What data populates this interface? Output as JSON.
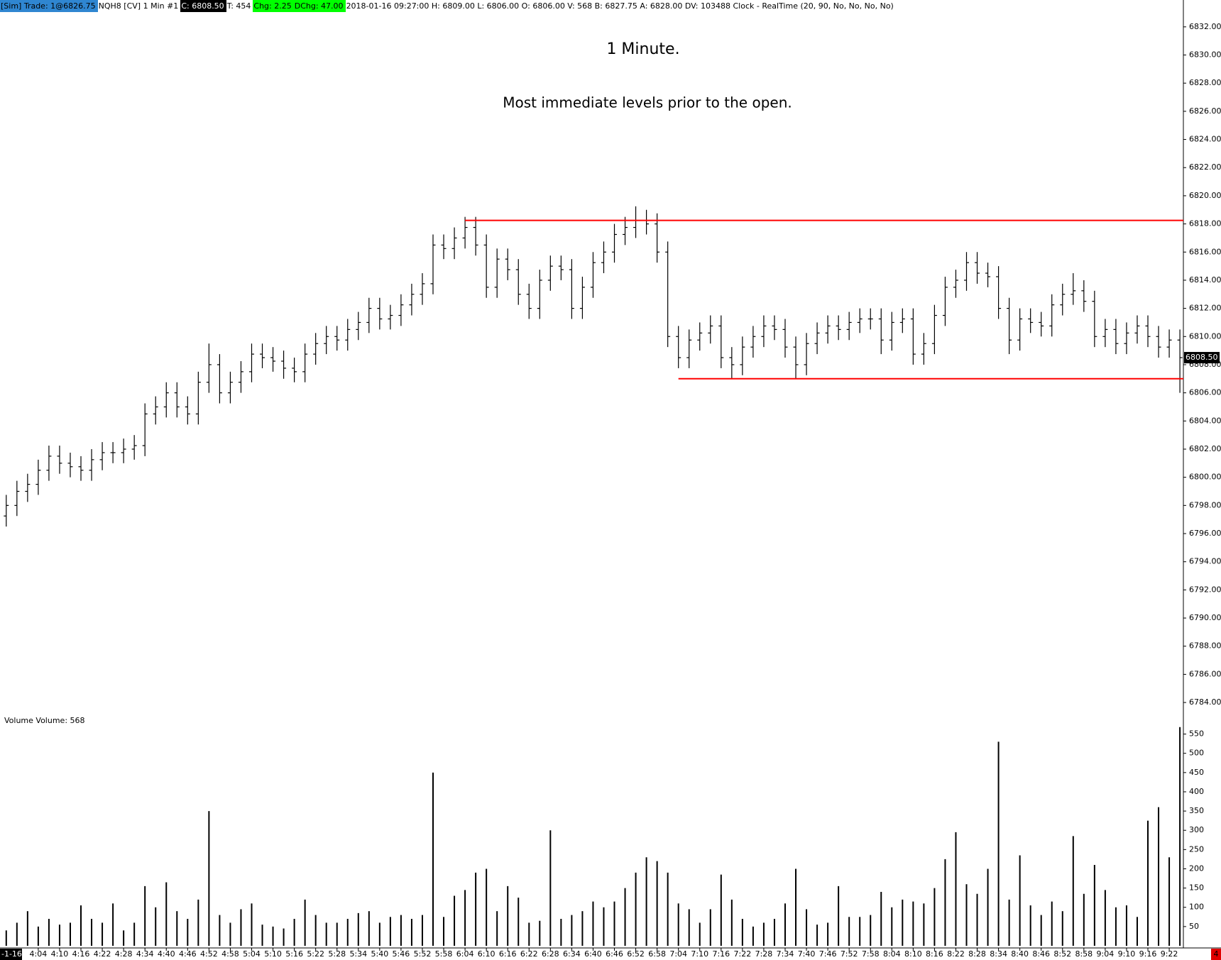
{
  "header": {
    "account": "[Sim]  Trade: 1@6826.75",
    "instrument": "NQH8 [CV]  1 Min  #1",
    "close": "C: 6808.50",
    "ticks": "T: 454",
    "change": "Chg: 2.25",
    "day_change": "DChg: 47.00",
    "details": "2018-01-16 09:27:00 H: 6809.00 L: 6806.00 O: 6806.00 V: 568 B: 6827.75 A: 6828.00 DV: 103488 Clock - RealTime  (20, 90, No, No, No, No)"
  },
  "footer": {
    "date": "-1-16",
    "badge": "4"
  },
  "chart_data": {
    "type": "ohlc",
    "title": "1 Minute.",
    "subtitle": "Most immediate levels prior to the open.",
    "color": "#000000",
    "categories": [
      null,
      null,
      null,
      "4:04",
      null,
      "4:10",
      null,
      "4:16",
      null,
      "4:22",
      null,
      "4:28",
      null,
      "4:34",
      null,
      "4:40",
      null,
      "4:46",
      null,
      "4:52",
      null,
      "4:58",
      null,
      "5:04",
      null,
      "5:10",
      null,
      "5:16",
      null,
      "5:22",
      null,
      "5:28",
      null,
      "5:34",
      null,
      "5:40",
      null,
      "5:46",
      null,
      "5:52",
      null,
      "5:58",
      null,
      "6:04",
      null,
      "6:10",
      null,
      "6:16",
      null,
      "6:22",
      null,
      "6:28",
      null,
      "6:34",
      null,
      "6:40",
      null,
      "6:46",
      null,
      "6:52",
      null,
      "6:58",
      null,
      "7:04",
      null,
      "7:10",
      null,
      "7:16",
      null,
      "7:22",
      null,
      "7:28",
      null,
      "7:34",
      null,
      "7:40",
      null,
      "7:46",
      null,
      "7:52",
      null,
      "7:58",
      null,
      "8:04",
      null,
      "8:10",
      null,
      "8:16",
      null,
      "8:22",
      null,
      "8:28",
      null,
      "8:34",
      null,
      "8:40",
      null,
      "8:46",
      null,
      "8:52",
      null,
      "8:58",
      null,
      "9:04",
      null,
      "9:10",
      null,
      "9:16",
      null,
      "9:22",
      null
    ],
    "open": [
      6797.25,
      6798,
      6799,
      6799.5,
      6800.5,
      6801.5,
      6801,
      6800.75,
      6800.5,
      6801.25,
      6801.75,
      6801.75,
      6802,
      6802.25,
      6804.5,
      6805,
      6806,
      6805,
      6804.5,
      6806.75,
      6808,
      6806,
      6806.75,
      6807.5,
      6808.75,
      6808.5,
      6808.25,
      6807.75,
      6807.5,
      6808.75,
      6809.5,
      6810,
      6809.75,
      6810.5,
      6811,
      6812,
      6811.25,
      6811.5,
      6812.25,
      6813,
      6813.75,
      6816.5,
      6816.25,
      6817,
      6817.75,
      6816.5,
      6813.5,
      6815.5,
      6814.75,
      6813,
      6812,
      6814,
      6815,
      6814.75,
      6812,
      6813.5,
      6815.25,
      6816,
      6817.25,
      6817.75,
      6818.25,
      6818,
      6816,
      6810,
      6808.5,
      6809.75,
      6810.25,
      6810.75,
      6808.5,
      6808,
      6809.25,
      6810,
      6810.75,
      6810.5,
      6809.25,
      6808,
      6809.5,
      6810.25,
      6810.75,
      6810.5,
      6811,
      6811.25,
      6811.25,
      6809.75,
      6811,
      6811.25,
      6808.75,
      6809.5,
      6811.5,
      6813.5,
      6814,
      6815.25,
      6814.5,
      6814.25,
      6812,
      6809.75,
      6811.25,
      6811,
      6810.75,
      6812.25,
      6813,
      6813.25,
      6812.5,
      6810,
      6810.5,
      6809.5,
      6810.25,
      6810.75,
      6810,
      6809.25,
      6809.75
    ],
    "high": [
      6798.75,
      6799.75,
      6800.25,
      6801.25,
      6802.25,
      6802.25,
      6801.75,
      6801.5,
      6802,
      6802.5,
      6802.5,
      6802.75,
      6803,
      6805.25,
      6805.75,
      6806.75,
      6806.75,
      6805.75,
      6807.5,
      6809.5,
      6808.75,
      6807.5,
      6808.25,
      6809.5,
      6809.5,
      6809.25,
      6809,
      6808.5,
      6809.5,
      6810.25,
      6810.75,
      6810.75,
      6811.25,
      6811.75,
      6812.75,
      6812.75,
      6812.25,
      6813,
      6813.75,
      6814.5,
      6817.25,
      6817.25,
      6817.75,
      6818.5,
      6818.5,
      6817.25,
      6816.25,
      6816.25,
      6815.5,
      6813.75,
      6814.75,
      6815.75,
      6815.75,
      6815.5,
      6814.25,
      6816,
      6816.75,
      6818,
      6818.5,
      6819.25,
      6819,
      6818.75,
      6816.75,
      6810.75,
      6810.5,
      6811,
      6811.5,
      6811.5,
      6809.25,
      6810,
      6810.75,
      6811.5,
      6811.5,
      6811.25,
      6810,
      6810.25,
      6811,
      6811.5,
      6811.5,
      6811.75,
      6812,
      6812,
      6812,
      6811.75,
      6812,
      6812,
      6810.25,
      6812.25,
      6814.25,
      6814.75,
      6816,
      6816,
      6815.25,
      6815,
      6812.75,
      6812,
      6812,
      6811.75,
      6813,
      6813.75,
      6814.5,
      6814,
      6813.25,
      6811.25,
      6811.25,
      6811,
      6811.5,
      6811.5,
      6810.75,
      6810.5,
      6810.5
    ],
    "low": [
      6796.5,
      6797.25,
      6798.25,
      6798.75,
      6799.75,
      6800.25,
      6800,
      6799.75,
      6799.75,
      6800.5,
      6801,
      6801,
      6801.25,
      6801.5,
      6803.75,
      6804.25,
      6804.25,
      6803.75,
      6803.75,
      6806,
      6805.25,
      6805.25,
      6806,
      6806.75,
      6807.75,
      6807.5,
      6807,
      6806.75,
      6806.75,
      6808,
      6808.75,
      6809,
      6809,
      6809.75,
      6810.25,
      6810.5,
      6810.5,
      6810.75,
      6811.5,
      6812.25,
      6813,
      6815.5,
      6815.5,
      6816.25,
      6815.75,
      6812.75,
      6812.75,
      6814,
      6812.25,
      6811.25,
      6811.25,
      6813.25,
      6814,
      6811.25,
      6811.25,
      6812.75,
      6814.5,
      6815.25,
      6816.5,
      6817,
      6817.25,
      6815.25,
      6809.25,
      6807.75,
      6807.75,
      6809,
      6809.5,
      6807.75,
      6807,
      6807.25,
      6808.5,
      6809.25,
      6809.75,
      6808.5,
      6807,
      6807.25,
      6808.75,
      6809.5,
      6809.75,
      6809.75,
      6810.25,
      6810.5,
      6808.75,
      6809,
      6810.25,
      6808,
      6808,
      6808.75,
      6810.75,
      6812.75,
      6813.25,
      6813.75,
      6813.5,
      6811.25,
      6808.75,
      6809,
      6810.25,
      6810,
      6810,
      6811.5,
      6812.25,
      6811.75,
      6809.25,
      6809.25,
      6808.75,
      6808.75,
      6809.5,
      6809.25,
      6808.5,
      6808.5,
      6806
    ],
    "close": [
      6798,
      6799,
      6799.5,
      6800.5,
      6801.5,
      6801,
      6800.75,
      6800.5,
      6801.25,
      6801.75,
      6801.75,
      6802,
      6802.25,
      6804.5,
      6805,
      6806,
      6805,
      6804.5,
      6806.75,
      6808,
      6806,
      6806.75,
      6807.5,
      6808.75,
      6808.5,
      6808.25,
      6807.75,
      6807.5,
      6808.75,
      6809.5,
      6810,
      6809.75,
      6810.5,
      6811,
      6812,
      6811.25,
      6811.5,
      6812.25,
      6813,
      6813.75,
      6816.5,
      6816.25,
      6817,
      6817.75,
      6816.5,
      6813.5,
      6815.5,
      6814.75,
      6813,
      6812,
      6814,
      6815,
      6814.75,
      6812,
      6813.5,
      6815.25,
      6816,
      6817.25,
      6817.75,
      6818.25,
      6818,
      6816,
      6810,
      6808.5,
      6809.75,
      6810.25,
      6810.75,
      6808.5,
      6808,
      6809.25,
      6810,
      6810.75,
      6810.5,
      6809.25,
      6808,
      6809.5,
      6810.25,
      6810.75,
      6810.5,
      6811,
      6811.25,
      6811.25,
      6809.75,
      6811,
      6811.25,
      6808.75,
      6809.5,
      6811.5,
      6813.5,
      6814,
      6815.25,
      6814.5,
      6814.25,
      6812,
      6809.75,
      6811.25,
      6811,
      6810.75,
      6812.25,
      6813,
      6813.25,
      6812.5,
      6810,
      6810.5,
      6809.5,
      6810.25,
      6810.75,
      6810,
      6809.25,
      6809.75,
      6808.5
    ],
    "ylim": [
      6783.5,
      6833
    ],
    "yticks": [
      {
        "value": 6784,
        "label": "6784.00"
      },
      {
        "value": 6786,
        "label": "6786.00"
      },
      {
        "value": 6788,
        "label": "6788.00"
      },
      {
        "value": 6790,
        "label": "6790.00"
      },
      {
        "value": 6792,
        "label": "6792.00"
      },
      {
        "value": 6794,
        "label": "6794.00"
      },
      {
        "value": 6796,
        "label": "6796.00"
      },
      {
        "value": 6798,
        "label": "6798.00"
      },
      {
        "value": 6800,
        "label": "6800.00"
      },
      {
        "value": 6802,
        "label": "6802.00"
      },
      {
        "value": 6804,
        "label": "6804.00"
      },
      {
        "value": 6806,
        "label": "6806.00"
      },
      {
        "value": 6808,
        "label": "6808.00"
      },
      {
        "value": 6810,
        "label": "6810.00"
      },
      {
        "value": 6812,
        "label": "6812.00"
      },
      {
        "value": 6814,
        "label": "6814.00"
      },
      {
        "value": 6816,
        "label": "6816.00"
      },
      {
        "value": 6818,
        "label": "6818.00"
      },
      {
        "value": 6820,
        "label": "6820.00"
      },
      {
        "value": 6822,
        "label": "6822.00"
      },
      {
        "value": 6824,
        "label": "6824.00"
      },
      {
        "value": 6826,
        "label": "6826.00"
      },
      {
        "value": 6828,
        "label": "6828.00"
      },
      {
        "value": 6830,
        "label": "6830.00"
      },
      {
        "value": 6832,
        "label": "6832.00"
      }
    ],
    "last_price_label": "6808.50",
    "levels": [
      {
        "value": 6818.25,
        "from": "6:04",
        "color": "#ff0000"
      },
      {
        "value": 6807,
        "from": "7:04",
        "color": "#ff0000"
      }
    ],
    "volume": {
      "title": "Volume  Volume: 568",
      "color": "#000000",
      "values": [
        40,
        60,
        90,
        50,
        70,
        55,
        60,
        105,
        70,
        60,
        110,
        40,
        60,
        155,
        100,
        165,
        90,
        70,
        120,
        350,
        80,
        60,
        95,
        110,
        55,
        50,
        45,
        70,
        120,
        80,
        60,
        60,
        70,
        85,
        90,
        60,
        75,
        80,
        70,
        80,
        450,
        75,
        130,
        145,
        190,
        200,
        90,
        155,
        125,
        60,
        65,
        300,
        70,
        80,
        90,
        115,
        100,
        115,
        150,
        190,
        230,
        220,
        190,
        110,
        95,
        60,
        95,
        185,
        120,
        70,
        50,
        60,
        70,
        110,
        200,
        95,
        55,
        60,
        155,
        75,
        75,
        80,
        140,
        100,
        120,
        115,
        110,
        150,
        225,
        295,
        160,
        135,
        200,
        530,
        120,
        235,
        105,
        80,
        115,
        90,
        285,
        135,
        210,
        145,
        100,
        105,
        75,
        325,
        360,
        230,
        568
      ],
      "ylim": [
        0,
        575
      ],
      "yticks": [
        50,
        100,
        150,
        200,
        250,
        300,
        350,
        400,
        450,
        500,
        550
      ]
    }
  }
}
